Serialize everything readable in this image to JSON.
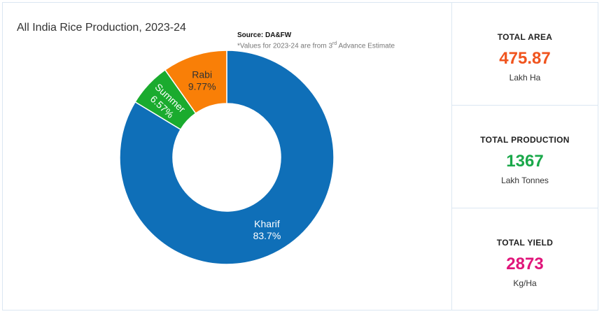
{
  "chart_data": {
    "type": "pie",
    "title": "All India Rice Production, 2023-24",
    "source": "Source: DA&FW",
    "note_prefix": "*Values for 2023-24 are from 3",
    "note_sup": "rd",
    "note_suffix": " Advance Estimate",
    "slices": [
      {
        "name": "Kharif",
        "value": 83.7,
        "label": "83.7%",
        "color": "#0f6fb8"
      },
      {
        "name": "Summer",
        "value": 6.57,
        "label": "6.57%",
        "color": "#1aab2e"
      },
      {
        "name": "Rabi",
        "value": 9.77,
        "label": "9.77%",
        "color": "#f97f07"
      }
    ],
    "donut": true
  },
  "stats": {
    "area": {
      "label": "TOTAL AREA",
      "value": "475.87",
      "unit": "Lakh Ha",
      "color": "#f0541e"
    },
    "production": {
      "label": "TOTAL PRODUCTION",
      "value": "1367",
      "unit": "Lakh Tonnes",
      "color": "#1aa84a"
    },
    "yield": {
      "label": "TOTAL YIELD",
      "value": "2873",
      "unit": "Kg/Ha",
      "color": "#e0157a"
    }
  }
}
